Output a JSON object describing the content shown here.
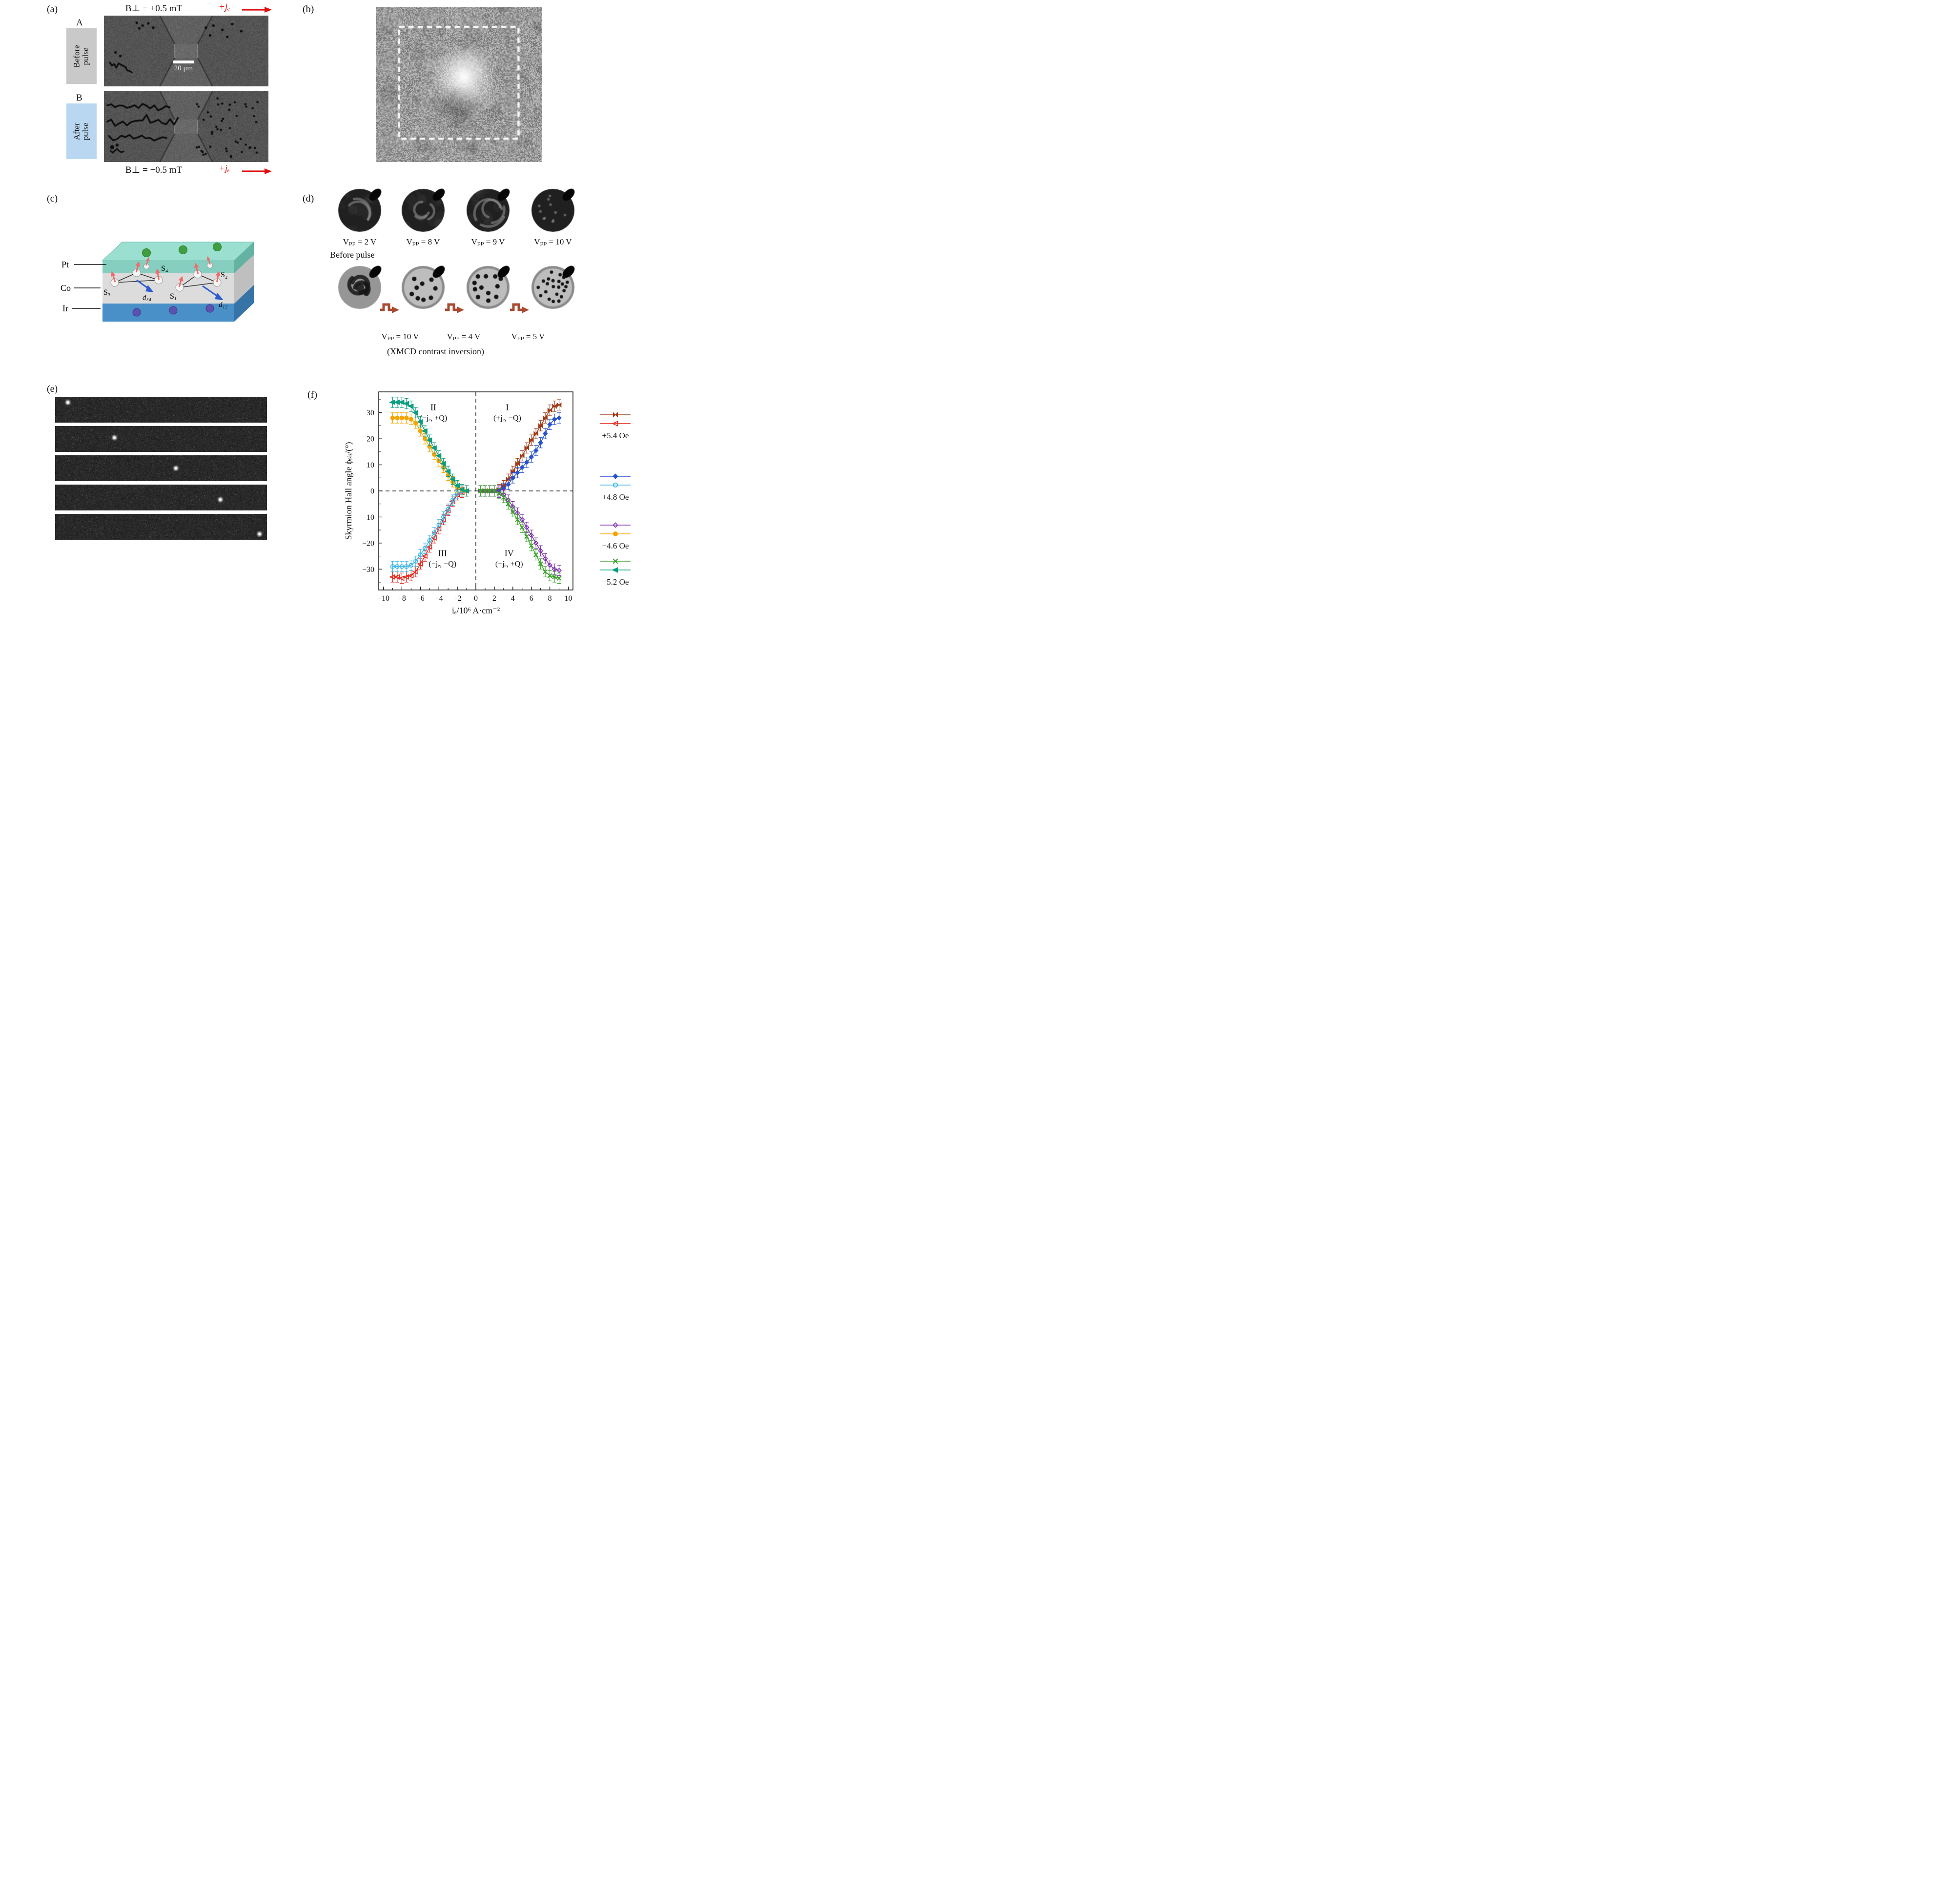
{
  "panels": {
    "a": {
      "label": "(a)",
      "field_top": "B⊥ = +0.5 mT",
      "field_bottom": "B⊥ = −0.5 mT",
      "current": "+jₑ",
      "row_a_letter": "A",
      "row_a_tag": "Before pulse",
      "row_b_letter": "B",
      "row_b_tag": "After pulse",
      "scalebar": "20 μm"
    },
    "b": {
      "label": "(b)"
    },
    "c": {
      "label": "(c)",
      "layer_pt": "Pt",
      "layer_co": "Co",
      "layer_ir": "Ir",
      "s1": "S₁",
      "s2": "S₂",
      "s3": "S₃",
      "s4": "S₄",
      "d12": "d₁₂",
      "d34": "d₃₄"
    },
    "d": {
      "label": "(d)",
      "row1_labels": [
        "Vₚₚ = 2 V",
        "Vₚₚ = 8 V",
        "Vₚₚ = 9 V",
        "Vₚₚ = 10 V"
      ],
      "before_pulse": "Before pulse",
      "row2_labels": [
        "Vₚₚ = 10 V",
        "Vₚₚ = 4 V",
        "Vₚₚ = 5 V"
      ],
      "footnote": "(XMCD contrast inversion)"
    },
    "e": {
      "label": "(e)"
    },
    "f": {
      "label": "(f)"
    }
  },
  "chart_data": {
    "type": "scatter",
    "title": "",
    "xlabel": "iₑ/10⁶ A·cm⁻²",
    "ylabel": "Skyrmion Hall angle ϕₛₖ/(°)",
    "xlim": [
      -10.5,
      10.5
    ],
    "ylim": [
      -38,
      38
    ],
    "xticks": [
      -10,
      -8,
      -6,
      -4,
      -2,
      0,
      2,
      4,
      6,
      8,
      10
    ],
    "yticks": [
      -30,
      -20,
      -10,
      0,
      10,
      20,
      30
    ],
    "grid": false,
    "zero_lines_dashed": true,
    "quadrants": [
      {
        "num": "II",
        "sub": "(−jₑ, +Q)",
        "x": -4.6,
        "y": 31
      },
      {
        "num": "I",
        "sub": "(+jₑ, −Q)",
        "x": 3.4,
        "y": 31
      },
      {
        "num": "III",
        "sub": "(−jₑ, −Q)",
        "x": -3.6,
        "y": -25
      },
      {
        "num": "IV",
        "sub": "(+jₑ, +Q)",
        "x": 3.6,
        "y": -25
      }
    ],
    "series": [
      {
        "name": "+5.4 Oe (+jₑ)",
        "color": "#a03916",
        "marker": "bowtie",
        "filled": true,
        "yerr": 2,
        "x": [
          0.5,
          1,
          1.5,
          2,
          2.5,
          3,
          3.5,
          4,
          4.5,
          5,
          5.5,
          6,
          6.5,
          7,
          7.5,
          8,
          8.5,
          9
        ],
        "y": [
          0,
          0,
          0,
          0,
          0.5,
          2,
          4.5,
          7.5,
          10.5,
          13.5,
          16.5,
          19.5,
          22,
          25,
          28,
          31,
          32.5,
          33
        ]
      },
      {
        "name": "+4.8 Oe (+jₑ)",
        "color": "#2753cc",
        "marker": "diamond",
        "filled": true,
        "yerr": 2,
        "x": [
          0.5,
          1,
          1.5,
          2,
          2.5,
          3,
          3.5,
          4,
          4.5,
          5,
          5.5,
          6,
          6.5,
          7,
          7.5,
          8,
          8.5,
          9
        ],
        "y": [
          0,
          0,
          0,
          0,
          0,
          1,
          2.5,
          5,
          7,
          9,
          11,
          13,
          15.5,
          18.5,
          22,
          25.5,
          27.5,
          28
        ]
      },
      {
        "name": "+5.4 Oe (−jₑ)",
        "color": "#e3241a",
        "marker": "triangle-left",
        "filled": false,
        "yerr": 2,
        "x": [
          -9,
          -8.5,
          -8,
          -7.5,
          -7,
          -6.5,
          -6,
          -5.5,
          -5,
          -4.5,
          -4,
          -3.5,
          -3,
          -2.5,
          -2,
          -1.5,
          -1
        ],
        "y": [
          -33,
          -33,
          -33.5,
          -33,
          -32.5,
          -31,
          -28,
          -25,
          -21.5,
          -18,
          -14.5,
          -11,
          -7.5,
          -4,
          -1.5,
          -0.5,
          0
        ]
      },
      {
        "name": "+4.8 Oe (−jₑ)",
        "color": "#3db5e6",
        "marker": "circle",
        "filled": false,
        "yerr": 2,
        "x": [
          -9,
          -8.5,
          -8,
          -7.5,
          -7,
          -6.5,
          -6,
          -5.5,
          -5,
          -4.5,
          -4,
          -3.5,
          -3,
          -2.5,
          -2,
          -1.5,
          -1
        ],
        "y": [
          -29,
          -29,
          -29,
          -29,
          -28.5,
          -27,
          -24.5,
          -22,
          -19,
          -16,
          -13,
          -10,
          -7,
          -3.5,
          -1,
          0,
          0
        ]
      },
      {
        "name": "−4.6 Oe (−jₑ)",
        "color": "#f5a400",
        "marker": "circle",
        "filled": true,
        "yerr": 2,
        "x": [
          -9,
          -8.5,
          -8,
          -7.5,
          -7,
          -6.5,
          -6,
          -5.5,
          -5,
          -4.5,
          -4,
          -3.5,
          -3,
          -2.5,
          -2,
          -1.5,
          -1
        ],
        "y": [
          28,
          28,
          28,
          28,
          27.5,
          26,
          23,
          20,
          17,
          14,
          11.5,
          9,
          6,
          3.5,
          1.5,
          0.5,
          0
        ]
      },
      {
        "name": "−5.2 Oe (−jₑ)",
        "color": "#0a9d80",
        "marker": "triangle-left",
        "filled": true,
        "yerr": 2,
        "x": [
          -9,
          -8.5,
          -8,
          -7.5,
          -7,
          -6.5,
          -6,
          -5.5,
          -5,
          -4.5,
          -4,
          -3.5,
          -3,
          -2.5,
          -2,
          -1.5,
          -1
        ],
        "y": [
          34,
          34,
          34,
          33.5,
          32.5,
          30,
          26.5,
          23,
          19.5,
          16.5,
          13.5,
          10.5,
          7.5,
          4.5,
          2,
          0.5,
          0
        ]
      },
      {
        "name": "−4.6 Oe (+jₑ)",
        "color": "#7c2fae",
        "marker": "diamond",
        "filled": false,
        "yerr": 2,
        "x": [
          0.5,
          1,
          1.5,
          2,
          2.5,
          3,
          3.5,
          4,
          4.5,
          5,
          5.5,
          6,
          6.5,
          7,
          7.5,
          8,
          8.5,
          9
        ],
        "y": [
          0,
          0,
          0,
          0,
          -0.5,
          -1.5,
          -3.5,
          -6,
          -8.5,
          -11,
          -14,
          -17,
          -20,
          -23,
          -26,
          -28.5,
          -30,
          -30.5
        ]
      },
      {
        "name": "−5.2 Oe (+jₑ)",
        "color": "#3aa32a",
        "marker": "x",
        "filled": true,
        "yerr": 2,
        "x": [
          0.5,
          1,
          1.5,
          2,
          2.5,
          3,
          3.5,
          4,
          4.5,
          5,
          5.5,
          6,
          6.5,
          7,
          7.5,
          8,
          8.5,
          9
        ],
        "y": [
          0,
          0,
          0,
          0,
          -1,
          -2.5,
          -5,
          -8,
          -11,
          -14,
          -17.5,
          -21,
          -24.5,
          -28,
          -31,
          -32.5,
          -33,
          -33.5
        ]
      }
    ],
    "legend": [
      {
        "label": "+5.4 Oe",
        "pair": [
          {
            "marker": "bowtie",
            "color": "#a03916",
            "filled": true
          },
          {
            "marker": "triangle-left",
            "color": "#e3241a",
            "filled": false
          }
        ]
      },
      {
        "label": "+4.8 Oe",
        "pair": [
          {
            "marker": "diamond",
            "color": "#2753cc",
            "filled": true
          },
          {
            "marker": "circle",
            "color": "#3db5e6",
            "filled": false
          }
        ]
      },
      {
        "label": "−4.6 Oe",
        "pair": [
          {
            "marker": "diamond",
            "color": "#7c2fae",
            "filled": false
          },
          {
            "marker": "circle",
            "color": "#f5a400",
            "filled": true
          }
        ]
      },
      {
        "label": "−5.2 Oe",
        "pair": [
          {
            "marker": "x",
            "color": "#3aa32a",
            "filled": true
          },
          {
            "marker": "triangle-left",
            "color": "#0a9d80",
            "filled": true
          }
        ]
      }
    ],
    "legend_position": "right"
  }
}
